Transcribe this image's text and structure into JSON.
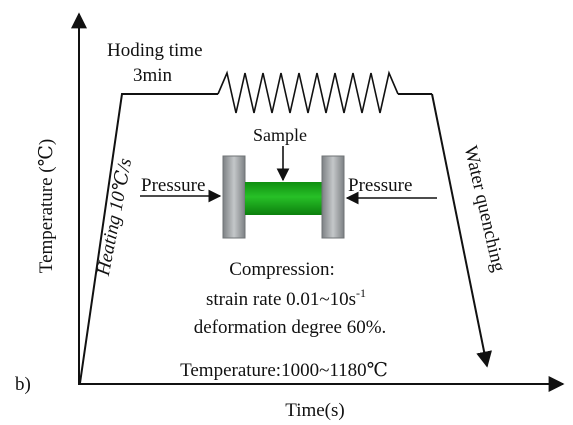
{
  "panel_label": "b)",
  "axes": {
    "x_label": "Time(s)",
    "y_label": "Temperature (℃)"
  },
  "stages": {
    "heating": "Heating 10℃/s",
    "holding_title": "Hoding time",
    "holding_duration": "3min",
    "quenching": "Water quenching"
  },
  "setup": {
    "sample_label": "Sample",
    "pressure_left": "Pressure",
    "pressure_right": "Pressure"
  },
  "compression": {
    "title": "Compression:",
    "strain_rate_text": "strain rate 0.01~10s",
    "strain_rate_exponent": "-1",
    "deformation": "deformation degree 60%."
  },
  "temperature_range": "Temperature:1000~1180℃",
  "colors": {
    "line": "#111111",
    "sample_green": "#1aa71a",
    "anvil_gray": "#9ea2a4"
  }
}
